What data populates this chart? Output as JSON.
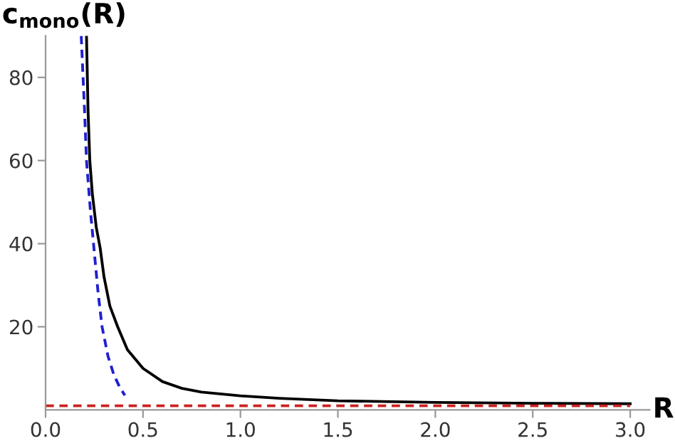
{
  "chart_data": {
    "type": "line",
    "xlabel": "R",
    "ylabel": "c$_{mono}$(R)",
    "xlim": [
      0,
      3.1
    ],
    "ylim": [
      0,
      90
    ],
    "xticks": [
      {
        "value": 0,
        "label": "0.0"
      },
      {
        "value": 0.5,
        "label": "0.5"
      },
      {
        "value": 1,
        "label": "1.0"
      },
      {
        "value": 1.5,
        "label": "1.5"
      },
      {
        "value": 2,
        "label": "2.0"
      },
      {
        "value": 2.5,
        "label": "2.5"
      },
      {
        "value": 3,
        "label": "3.0"
      }
    ],
    "yticks": [
      20,
      40,
      60,
      80
    ],
    "grid": false,
    "legend": false,
    "series": [
      {
        "color": "#000000",
        "line_style": "solid",
        "x": [
          0.21,
          0.218,
          0.227,
          0.24,
          0.26,
          0.28,
          0.3,
          0.33,
          0.37,
          0.42,
          0.5,
          0.6,
          0.7,
          0.8,
          1.0,
          1.2,
          1.5,
          2.0,
          2.5,
          3.0
        ],
        "values": [
          90,
          72,
          60,
          52,
          44,
          39,
          32,
          25,
          20,
          14.5,
          10,
          6.8,
          5.2,
          4.3,
          3.4,
          2.8,
          2.2,
          1.8,
          1.6,
          1.5
        ]
      },
      {
        "color": "#2020d0",
        "line_style": "dashed",
        "x": [
          0.183,
          0.2,
          0.21,
          0.23,
          0.246,
          0.27,
          0.29,
          0.32,
          0.35,
          0.38,
          0.407
        ],
        "values": [
          90,
          72,
          60,
          48,
          40,
          28,
          20,
          13,
          8.5,
          5.5,
          3.5
        ]
      },
      {
        "color": "#cc2020",
        "line_style": "dashed",
        "x": [
          0,
          3.0
        ],
        "values": [
          1,
          1
        ]
      }
    ]
  }
}
